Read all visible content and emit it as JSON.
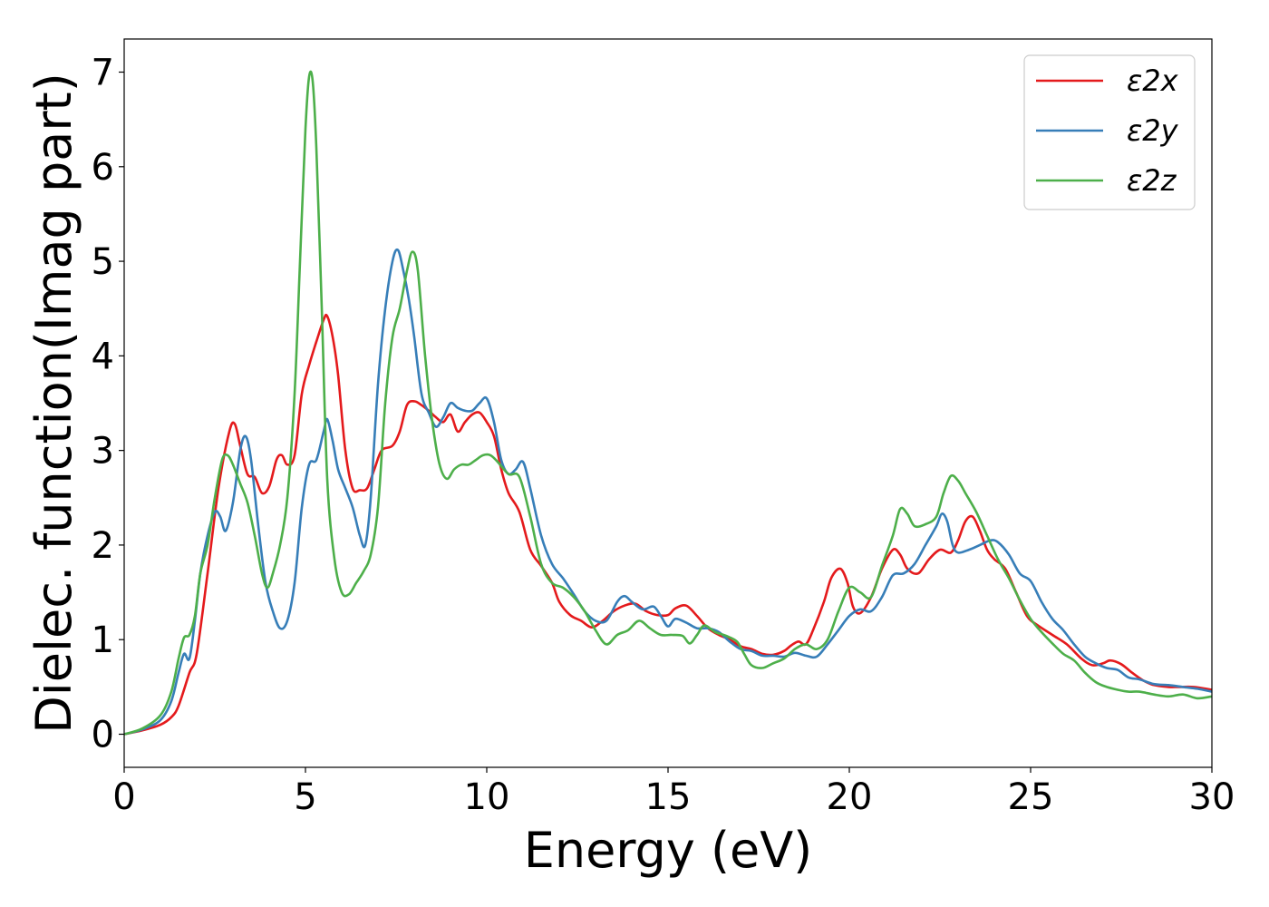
{
  "chart_data": {
    "type": "line",
    "xlabel": "Energy (eV)",
    "ylabel": "Dielec. function(Imag part)",
    "xlim": [
      0,
      30
    ],
    "ylim": [
      -0.35,
      7.35
    ],
    "xticks": [
      "0",
      "5",
      "10",
      "15",
      "20",
      "25",
      "30"
    ],
    "yticks": [
      "0",
      "1",
      "2",
      "3",
      "4",
      "5",
      "6",
      "7"
    ],
    "grid": false,
    "legend_position": "top-right",
    "series": [
      {
        "name": "ε2x",
        "color": "#e41a1c",
        "x": [
          0,
          0.5,
          1.0,
          1.3,
          1.5,
          1.8,
          2.0,
          2.3,
          2.6,
          2.9,
          3.05,
          3.2,
          3.4,
          3.6,
          3.8,
          4.0,
          4.2,
          4.35,
          4.5,
          4.7,
          4.9,
          5.1,
          5.3,
          5.5,
          5.6,
          5.75,
          5.9,
          6.1,
          6.3,
          6.5,
          6.7,
          6.9,
          7.1,
          7.4,
          7.6,
          7.8,
          8.0,
          8.2,
          8.4,
          8.6,
          8.8,
          9.0,
          9.2,
          9.4,
          9.6,
          9.8,
          10.0,
          10.2,
          10.4,
          10.6,
          10.9,
          11.2,
          11.5,
          11.8,
          12.0,
          12.3,
          12.6,
          12.9,
          13.2,
          13.5,
          13.8,
          14.1,
          14.4,
          14.7,
          15.0,
          15.2,
          15.5,
          15.8,
          16.1,
          16.4,
          16.7,
          17.0,
          17.3,
          17.6,
          17.9,
          18.2,
          18.4,
          18.6,
          18.8,
          19.0,
          19.3,
          19.5,
          19.75,
          19.95,
          20.1,
          20.3,
          20.6,
          20.9,
          21.2,
          21.4,
          21.6,
          21.9,
          22.2,
          22.5,
          22.8,
          23.0,
          23.2,
          23.4,
          23.6,
          23.8,
          24.0,
          24.3,
          24.6,
          24.9,
          25.2,
          25.6,
          26.0,
          26.4,
          26.7,
          27.0,
          27.2,
          27.5,
          27.8,
          28.1,
          28.4,
          28.8,
          29.1,
          29.5,
          30.0
        ],
        "y": [
          0,
          0.04,
          0.1,
          0.18,
          0.3,
          0.65,
          0.85,
          1.7,
          2.6,
          3.2,
          3.28,
          3.05,
          2.75,
          2.72,
          2.55,
          2.62,
          2.9,
          2.95,
          2.85,
          2.95,
          3.6,
          3.9,
          4.15,
          4.38,
          4.42,
          4.2,
          3.8,
          3.0,
          2.6,
          2.58,
          2.6,
          2.8,
          3.0,
          3.05,
          3.2,
          3.48,
          3.52,
          3.48,
          3.42,
          3.35,
          3.3,
          3.38,
          3.2,
          3.3,
          3.38,
          3.4,
          3.3,
          3.15,
          2.8,
          2.55,
          2.35,
          1.95,
          1.78,
          1.6,
          1.4,
          1.26,
          1.2,
          1.13,
          1.2,
          1.3,
          1.36,
          1.38,
          1.3,
          1.26,
          1.26,
          1.33,
          1.36,
          1.25,
          1.12,
          1.05,
          1.0,
          0.93,
          0.9,
          0.85,
          0.84,
          0.88,
          0.94,
          0.98,
          0.95,
          1.1,
          1.4,
          1.65,
          1.75,
          1.6,
          1.35,
          1.28,
          1.45,
          1.75,
          1.95,
          1.9,
          1.75,
          1.7,
          1.85,
          1.95,
          1.92,
          2.05,
          2.25,
          2.3,
          2.15,
          1.95,
          1.85,
          1.75,
          1.5,
          1.25,
          1.15,
          1.05,
          0.95,
          0.8,
          0.73,
          0.75,
          0.78,
          0.74,
          0.65,
          0.57,
          0.52,
          0.5,
          0.5,
          0.5,
          0.47
        ]
      },
      {
        "name": "ε2y",
        "color": "#377eb8",
        "x": [
          0,
          0.5,
          1.0,
          1.3,
          1.5,
          1.65,
          1.8,
          1.95,
          2.1,
          2.3,
          2.5,
          2.65,
          2.8,
          3.0,
          3.2,
          3.35,
          3.5,
          3.7,
          3.9,
          4.1,
          4.3,
          4.5,
          4.7,
          4.9,
          5.1,
          5.3,
          5.5,
          5.6,
          5.75,
          5.9,
          6.1,
          6.3,
          6.5,
          6.65,
          6.8,
          7.0,
          7.2,
          7.4,
          7.55,
          7.7,
          7.85,
          8.0,
          8.2,
          8.4,
          8.6,
          8.8,
          9.0,
          9.2,
          9.4,
          9.6,
          9.8,
          10.0,
          10.2,
          10.4,
          10.6,
          10.8,
          11.0,
          11.2,
          11.5,
          11.8,
          12.1,
          12.4,
          12.7,
          13.0,
          13.3,
          13.6,
          13.8,
          14.0,
          14.3,
          14.6,
          14.8,
          15.0,
          15.2,
          15.5,
          15.8,
          16.1,
          16.4,
          16.7,
          17.0,
          17.3,
          17.6,
          17.9,
          18.2,
          18.5,
          18.8,
          19.1,
          19.4,
          19.7,
          20.0,
          20.3,
          20.6,
          20.9,
          21.2,
          21.5,
          21.8,
          22.1,
          22.4,
          22.55,
          22.7,
          22.85,
          23.0,
          23.3,
          23.6,
          23.9,
          24.1,
          24.4,
          24.7,
          25.0,
          25.3,
          25.6,
          25.9,
          26.2,
          26.5,
          26.8,
          27.1,
          27.4,
          27.7,
          28.0,
          28.4,
          28.8,
          29.2,
          29.6,
          30.0
        ],
        "y": [
          0,
          0.05,
          0.15,
          0.35,
          0.65,
          0.85,
          0.8,
          1.2,
          1.7,
          2.1,
          2.35,
          2.3,
          2.15,
          2.45,
          3.0,
          3.15,
          2.9,
          2.2,
          1.6,
          1.3,
          1.12,
          1.2,
          1.6,
          2.4,
          2.85,
          2.9,
          3.2,
          3.33,
          3.1,
          2.8,
          2.6,
          2.4,
          2.1,
          2.0,
          2.5,
          3.7,
          4.5,
          5.0,
          5.12,
          4.9,
          4.6,
          4.2,
          3.6,
          3.4,
          3.25,
          3.35,
          3.5,
          3.45,
          3.42,
          3.42,
          3.5,
          3.55,
          3.3,
          2.9,
          2.75,
          2.8,
          2.88,
          2.6,
          2.1,
          1.8,
          1.65,
          1.48,
          1.3,
          1.2,
          1.2,
          1.4,
          1.46,
          1.4,
          1.32,
          1.35,
          1.25,
          1.14,
          1.22,
          1.18,
          1.12,
          1.12,
          1.08,
          0.98,
          0.9,
          0.88,
          0.83,
          0.83,
          0.82,
          0.86,
          0.83,
          0.82,
          0.95,
          1.1,
          1.25,
          1.32,
          1.3,
          1.45,
          1.68,
          1.7,
          1.8,
          2.0,
          2.2,
          2.33,
          2.25,
          2.0,
          1.92,
          1.95,
          2.0,
          2.05,
          2.03,
          1.9,
          1.7,
          1.62,
          1.4,
          1.22,
          1.1,
          0.95,
          0.82,
          0.75,
          0.7,
          0.68,
          0.6,
          0.58,
          0.53,
          0.52,
          0.5,
          0.48,
          0.45
        ]
      },
      {
        "name": "ε2z",
        "color": "#4daf4a",
        "x": [
          0,
          0.5,
          1.0,
          1.3,
          1.5,
          1.65,
          1.8,
          1.95,
          2.1,
          2.3,
          2.5,
          2.7,
          2.85,
          3.0,
          3.2,
          3.4,
          3.6,
          3.8,
          3.95,
          4.1,
          4.3,
          4.5,
          4.7,
          4.85,
          5.0,
          5.1,
          5.2,
          5.3,
          5.45,
          5.6,
          5.8,
          6.0,
          6.2,
          6.4,
          6.6,
          6.8,
          7.0,
          7.2,
          7.4,
          7.6,
          7.8,
          7.95,
          8.1,
          8.3,
          8.5,
          8.7,
          8.9,
          9.1,
          9.3,
          9.5,
          9.7,
          9.9,
          10.1,
          10.3,
          10.6,
          10.9,
          11.2,
          11.5,
          11.8,
          12.1,
          12.4,
          12.7,
          13.0,
          13.3,
          13.6,
          13.9,
          14.2,
          14.5,
          14.8,
          15.1,
          15.4,
          15.6,
          15.8,
          16.0,
          16.3,
          16.6,
          16.9,
          17.1,
          17.3,
          17.6,
          17.9,
          18.2,
          18.5,
          18.8,
          19.1,
          19.4,
          19.7,
          20.0,
          20.3,
          20.6,
          20.9,
          21.2,
          21.4,
          21.6,
          21.8,
          22.1,
          22.4,
          22.6,
          22.8,
          23.0,
          23.2,
          23.5,
          23.8,
          24.1,
          24.4,
          24.7,
          25.0,
          25.3,
          25.6,
          25.9,
          26.2,
          26.5,
          26.8,
          27.1,
          27.4,
          27.7,
          28.0,
          28.4,
          28.8,
          29.2,
          29.6,
          30.0
        ],
        "y": [
          0,
          0.06,
          0.2,
          0.45,
          0.8,
          1.02,
          1.05,
          1.25,
          1.7,
          2.0,
          2.5,
          2.9,
          2.95,
          2.85,
          2.65,
          2.45,
          2.1,
          1.7,
          1.55,
          1.7,
          2.0,
          2.5,
          3.6,
          5.0,
          6.4,
          6.95,
          6.9,
          6.2,
          4.5,
          2.7,
          1.85,
          1.5,
          1.48,
          1.6,
          1.72,
          1.9,
          2.4,
          3.5,
          4.2,
          4.5,
          4.9,
          5.1,
          4.9,
          4.0,
          3.3,
          2.85,
          2.7,
          2.8,
          2.85,
          2.85,
          2.9,
          2.95,
          2.95,
          2.88,
          2.75,
          2.72,
          2.3,
          1.8,
          1.6,
          1.55,
          1.45,
          1.3,
          1.1,
          0.95,
          1.05,
          1.1,
          1.2,
          1.12,
          1.05,
          1.05,
          1.04,
          0.96,
          1.05,
          1.15,
          1.08,
          1.04,
          0.98,
          0.85,
          0.73,
          0.7,
          0.75,
          0.8,
          0.9,
          0.95,
          0.9,
          1.0,
          1.3,
          1.55,
          1.5,
          1.45,
          1.78,
          2.1,
          2.38,
          2.33,
          2.2,
          2.22,
          2.3,
          2.55,
          2.73,
          2.68,
          2.55,
          2.35,
          2.1,
          1.85,
          1.65,
          1.42,
          1.22,
          1.08,
          0.96,
          0.85,
          0.78,
          0.65,
          0.55,
          0.5,
          0.47,
          0.45,
          0.45,
          0.42,
          0.4,
          0.42,
          0.38,
          0.4
        ]
      }
    ]
  }
}
